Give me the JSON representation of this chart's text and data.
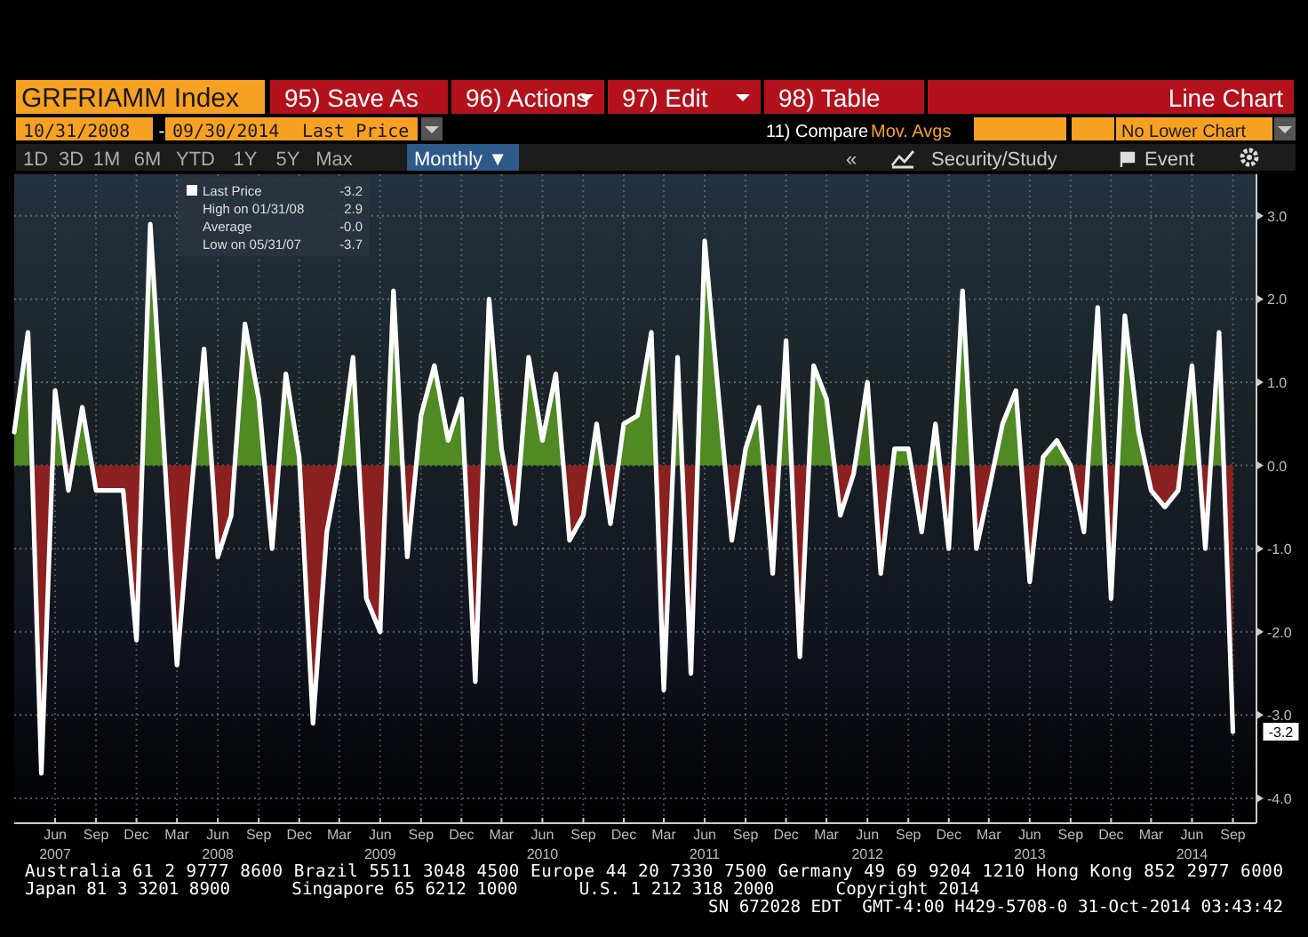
{
  "chart_data": {
    "type": "area",
    "title": "GRFRIAMM Index",
    "x": [
      "2007-03",
      "2007-04",
      "2007-05",
      "2007-06",
      "2007-07",
      "2007-08",
      "2007-09",
      "2007-10",
      "2007-11",
      "2007-12",
      "2008-01",
      "2008-02",
      "2008-03",
      "2008-04",
      "2008-05",
      "2008-06",
      "2008-07",
      "2008-08",
      "2008-09",
      "2008-10",
      "2008-11",
      "2008-12",
      "2009-01",
      "2009-02",
      "2009-03",
      "2009-04",
      "2009-05",
      "2009-06",
      "2009-07",
      "2009-08",
      "2009-09",
      "2009-10",
      "2009-11",
      "2009-12",
      "2010-01",
      "2010-02",
      "2010-03",
      "2010-04",
      "2010-05",
      "2010-06",
      "2010-07",
      "2010-08",
      "2010-09",
      "2010-10",
      "2010-11",
      "2010-12",
      "2011-01",
      "2011-02",
      "2011-03",
      "2011-04",
      "2011-05",
      "2011-06",
      "2011-07",
      "2011-08",
      "2011-09",
      "2011-10",
      "2011-11",
      "2011-12",
      "2012-01",
      "2012-02",
      "2012-03",
      "2012-04",
      "2012-05",
      "2012-06",
      "2012-07",
      "2012-08",
      "2012-09",
      "2012-10",
      "2012-11",
      "2012-12",
      "2013-01",
      "2013-02",
      "2013-03",
      "2013-04",
      "2013-05",
      "2013-06",
      "2013-07",
      "2013-08",
      "2013-09",
      "2013-10",
      "2013-11",
      "2013-12",
      "2014-01",
      "2014-02",
      "2014-03",
      "2014-04",
      "2014-05",
      "2014-06",
      "2014-07",
      "2014-08",
      "2014-09"
    ],
    "series": [
      {
        "name": "Last Price",
        "color": "#ffffff",
        "colors": [
          "#4f8a23",
          "#4f8a23",
          "#8b2020",
          "#4f8a23",
          "#8b2020",
          "#4f8a23",
          "#8b2020",
          "#8b2020",
          "#8b2020",
          "#8b2020",
          "#4f8a23",
          "#4f8a23",
          "#8b2020",
          "#8b2020",
          "#4f8a23",
          "#8b2020",
          "#8b2020",
          "#4f8a23",
          "#4f8a23",
          "#8b2020",
          "#4f8a23",
          "#4f8a23",
          "#8b2020",
          "#8b2020",
          "#4f8a23",
          "#4f8a23",
          "#8b2020",
          "#8b2020",
          "#4f8a23",
          "#8b2020",
          "#4f8a23",
          "#4f8a23",
          "#4f8a23",
          "#4f8a23",
          "#8b2020",
          "#4f8a23",
          "#4f8a23",
          "#8b2020",
          "#4f8a23",
          "#4f8a23",
          "#4f8a23",
          "#8b2020",
          "#8b2020",
          "#4f8a23",
          "#8b2020",
          "#4f8a23",
          "#4f8a23",
          "#4f8a23",
          "#8b2020",
          "#4f8a23",
          "#8b2020",
          "#4f8a23",
          "#4f8a23",
          "#8b2020",
          "#4f8a23",
          "#4f8a23",
          "#8b2020",
          "#4f8a23",
          "#8b2020",
          "#4f8a23",
          "#4f8a23",
          "#8b2020",
          "#8b2020",
          "#4f8a23",
          "#8b2020",
          "#4f8a23",
          "#4f8a23",
          "#8b2020",
          "#4f8a23",
          "#8b2020",
          "#4f8a23",
          "#8b2020",
          "#8b2020",
          "#4f8a23",
          "#4f8a23",
          "#8b2020",
          "#4f8a23",
          "#4f8a23",
          "#4f8a23",
          "#8b2020",
          "#4f8a23",
          "#8b2020",
          "#4f8a23",
          "#4f8a23",
          "#8b2020",
          "#8b2020",
          "#8b2020",
          "#4f8a23",
          "#8b2020",
          "#4f8a23",
          "#8b2020"
        ],
        "values": [
          0.4,
          1.6,
          -3.7,
          0.9,
          -0.3,
          0.7,
          -0.3,
          -0.3,
          -0.3,
          -2.1,
          2.9,
          0.2,
          -2.4,
          -0.4,
          1.4,
          -1.1,
          -0.6,
          1.7,
          0.8,
          -1.0,
          1.1,
          0.1,
          -3.1,
          -0.8,
          0.0,
          1.3,
          -1.6,
          -2.0,
          2.1,
          -1.1,
          0.6,
          1.2,
          0.3,
          0.8,
          -2.6,
          2.0,
          0.2,
          -0.7,
          1.3,
          0.3,
          1.1,
          -0.9,
          -0.6,
          0.5,
          -0.7,
          0.5,
          0.6,
          1.6,
          -2.7,
          1.3,
          -2.5,
          2.7,
          0.9,
          -0.9,
          0.2,
          0.7,
          -1.3,
          1.5,
          -2.3,
          1.2,
          0.8,
          -0.6,
          -0.1,
          1.0,
          -1.3,
          0.2,
          0.2,
          -0.8,
          0.5,
          -1.0,
          2.1,
          -1.0,
          -0.3,
          0.5,
          0.9,
          -1.4,
          0.1,
          0.3,
          0.0,
          -0.8,
          1.9,
          -1.6,
          1.8,
          0.4,
          -0.3,
          -0.5,
          -0.3,
          1.2,
          -1.0,
          1.6,
          -3.2
        ]
      }
    ],
    "xlim": [
      "2007-03",
      "2014-10-24"
    ],
    "xticks": [
      {
        "value": "2007-06",
        "label": "Jun\n2007"
      },
      {
        "value": "2007-09",
        "label": "Sep"
      },
      {
        "value": "2007-12",
        "label": "Dec"
      },
      {
        "value": "2008-03",
        "label": "Mar"
      },
      {
        "value": "2008-06",
        "label": "Jun\n2008"
      },
      {
        "value": "2008-09",
        "label": "Sep"
      },
      {
        "value": "2008-12",
        "label": "Dec"
      },
      {
        "value": "2009-03",
        "label": "Mar"
      },
      {
        "value": "2009-06",
        "label": "Jun\n2009"
      },
      {
        "value": "2009-09",
        "label": "Sep"
      },
      {
        "value": "2009-12",
        "label": "Dec"
      },
      {
        "value": "2010-03",
        "label": "Mar"
      },
      {
        "value": "2010-06",
        "label": "Jun\n2010"
      },
      {
        "value": "2010-09",
        "label": "Sep"
      },
      {
        "value": "2010-12",
        "label": "Dec"
      },
      {
        "value": "2011-03",
        "label": "Mar"
      },
      {
        "value": "2011-06",
        "label": "Jun\n2011"
      },
      {
        "value": "2011-09",
        "label": "Sep"
      },
      {
        "value": "2011-12",
        "label": "Dec"
      },
      {
        "value": "2012-03",
        "label": "Mar"
      },
      {
        "value": "2012-06",
        "label": "Jun\n2012"
      },
      {
        "value": "2012-09",
        "label": "Sep"
      },
      {
        "value": "2012-12",
        "label": "Dec"
      },
      {
        "value": "2013-03",
        "label": "Mar"
      },
      {
        "value": "2013-06",
        "label": "Jun\n2013"
      },
      {
        "value": "2013-09",
        "label": "Sep"
      },
      {
        "value": "2013-12",
        "label": "Dec"
      },
      {
        "value": "2014-03",
        "label": "Mar"
      },
      {
        "value": "2014-06",
        "label": "Jun\n2014"
      },
      {
        "value": "2014-09",
        "label": "Sep"
      }
    ],
    "ylim": [
      -4.3,
      3.5
    ],
    "yticks": [
      {
        "value": -4,
        "label": "-4.0"
      },
      {
        "value": -3,
        "label": "-3.0"
      },
      {
        "value": -2,
        "label": "-2.0"
      },
      {
        "value": -1,
        "label": "-1.0"
      },
      {
        "value": 0,
        "label": "0.0"
      },
      {
        "value": 1,
        "label": "1.0"
      },
      {
        "value": 2,
        "label": "2.0"
      },
      {
        "value": 3,
        "label": "3.0"
      }
    ],
    "grid": true,
    "legend": "top left",
    "annotations": [
      "-3.2",
      "High on 01/31/08",
      "2.9",
      "Average",
      "-0.0",
      "Low on 05/31/07",
      "-3.7",
      {
        "text": "-3.2",
        "x": "2014-09",
        "y": -3.2
      },
      "95) Save As",
      "96) Actions",
      "97) Edit",
      "98) Table",
      "Line Chart",
      "10/31/2008",
      "09/30/2014",
      "Last Price",
      "11) Compare",
      "Mov. Avgs",
      "No Lower Chart",
      "1D",
      "3D",
      "1M",
      "6M",
      "YTD",
      "1Y",
      "5Y",
      "Max",
      "Monthly ▼",
      "Security/Study",
      "Event",
      "Australia 61 2 9777 8600 Brazil 5511 3048 4500 Europe 44 20 7330 7500 Germany 49 69 9204 1210 Hong Kong 852 2977 6000",
      "Japan 81 3 3201 8900      Singapore 65 6212 1000      U.S. 1 212 318 2000      Copyright 2014",
      "SN 672028 EDT  GMT-4:00 H429-5708-0 31-Oct-2014 03:43:42",
      "-",
      "«"
    ]
  }
}
